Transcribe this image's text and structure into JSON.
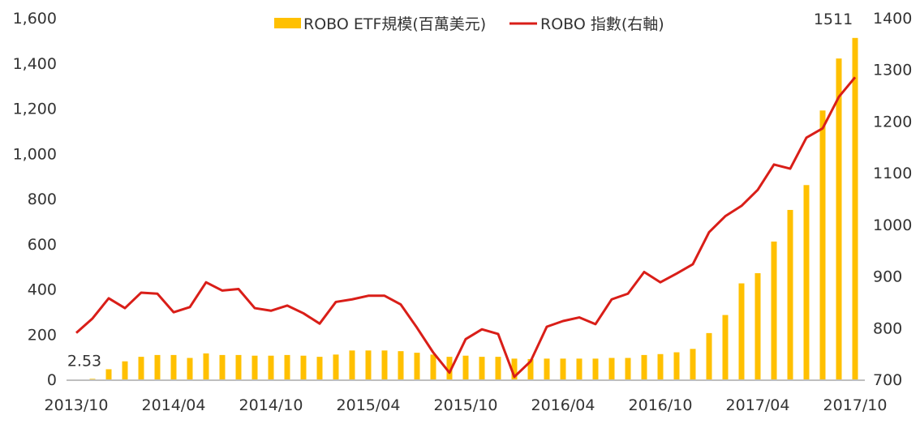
{
  "chart_data": {
    "type": "bar+line",
    "title": "",
    "categories": [
      "2013/10",
      "2013/11",
      "2013/12",
      "2014/01",
      "2014/02",
      "2014/03",
      "2014/04",
      "2014/05",
      "2014/06",
      "2014/07",
      "2014/08",
      "2014/09",
      "2014/10",
      "2014/11",
      "2014/12",
      "2015/01",
      "2015/02",
      "2015/03",
      "2015/04",
      "2015/05",
      "2015/06",
      "2015/07",
      "2015/08",
      "2015/09",
      "2015/10",
      "2015/11",
      "2015/12",
      "2016/01",
      "2016/02",
      "2016/03",
      "2016/04",
      "2016/05",
      "2016/06",
      "2016/07",
      "2016/08",
      "2016/09",
      "2016/10",
      "2016/11",
      "2016/12",
      "2017/01",
      "2017/02",
      "2017/03",
      "2017/04",
      "2017/05",
      "2017/06",
      "2017/07",
      "2017/08",
      "2017/09",
      "2017/10"
    ],
    "x_tick_labels": [
      "2013/10",
      "2014/04",
      "2014/10",
      "2015/04",
      "2015/10",
      "2016/04",
      "2016/10",
      "2017/04",
      "2017/10"
    ],
    "y_left": {
      "min": 0,
      "max": 1600,
      "ticks": [
        "0",
        "200",
        "400",
        "600",
        "800",
        "1,000",
        "1,200",
        "1,400",
        "1,600"
      ]
    },
    "y_right": {
      "min": 700,
      "max": 1400,
      "ticks": [
        "700",
        "800",
        "900",
        "1000",
        "1100",
        "1200",
        "1300",
        "1400"
      ]
    },
    "legend_position": "top-center",
    "series": [
      {
        "name": "ROBO ETF規模(百萬美元)",
        "type": "bar",
        "axis": "left",
        "color": "#FFC000",
        "values": [
          null,
          2.53,
          45,
          80,
          100,
          108,
          108,
          95,
          115,
          108,
          108,
          105,
          105,
          108,
          105,
          100,
          110,
          128,
          128,
          128,
          125,
          118,
          110,
          100,
          105,
          100,
          100,
          92,
          90,
          92,
          92,
          92,
          92,
          95,
          95,
          108,
          112,
          120,
          135,
          205,
          285,
          425,
          470,
          610,
          750,
          860,
          1190,
          1420,
          1511
        ]
      },
      {
        "name": "ROBO 指數(右軸)",
        "type": "line",
        "axis": "right",
        "color": "#D91E18",
        "values": [
          790,
          818,
          857,
          838,
          868,
          866,
          830,
          840,
          888,
          872,
          875,
          838,
          833,
          843,
          828,
          808,
          850,
          855,
          862,
          862,
          845,
          800,
          752,
          713,
          778,
          797,
          788,
          705,
          735,
          802,
          813,
          820,
          807,
          855,
          866,
          908,
          888,
          905,
          923,
          985,
          1016,
          1036,
          1067,
          1116,
          1108,
          1168,
          1186,
          1247,
          1285
        ]
      }
    ],
    "annotations": [
      {
        "text": "2.53",
        "category": "2013/11",
        "series": "ROBO ETF規模(百萬美元)"
      },
      {
        "text": "1511",
        "category": "2017/10",
        "series": "ROBO ETF規模(百萬美元)"
      }
    ]
  }
}
